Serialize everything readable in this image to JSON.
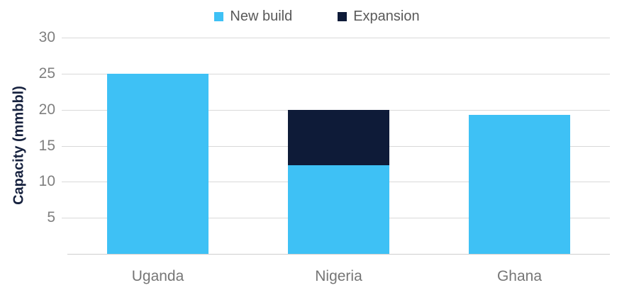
{
  "chart_data": {
    "type": "bar",
    "stacked": true,
    "categories": [
      "Uganda",
      "Nigeria",
      "Ghana"
    ],
    "series": [
      {
        "name": "New build",
        "color": "#3EC1F5",
        "values": [
          25,
          12.3,
          19.3
        ]
      },
      {
        "name": "Expansion",
        "color": "#0E1B38",
        "values": [
          0,
          7.7,
          0
        ]
      }
    ],
    "title": "",
    "xlabel": "",
    "ylabel": "Capacity (mmbbl)",
    "ylim": [
      0,
      30
    ],
    "ytick_step": 5,
    "yticks": [
      5,
      10,
      15,
      20,
      25,
      30
    ],
    "grid": true,
    "legend_position": "top"
  },
  "colors": {
    "new_build": "#3EC1F5",
    "expansion": "#0E1B38",
    "gridline": "#D9D9D9",
    "axis_line": "#CFCFCF",
    "tick_label": "#7F7F7F",
    "category_label": "#767676",
    "legend_text": "#595959",
    "axis_title": "#16213E",
    "background": "#FFFFFF"
  }
}
